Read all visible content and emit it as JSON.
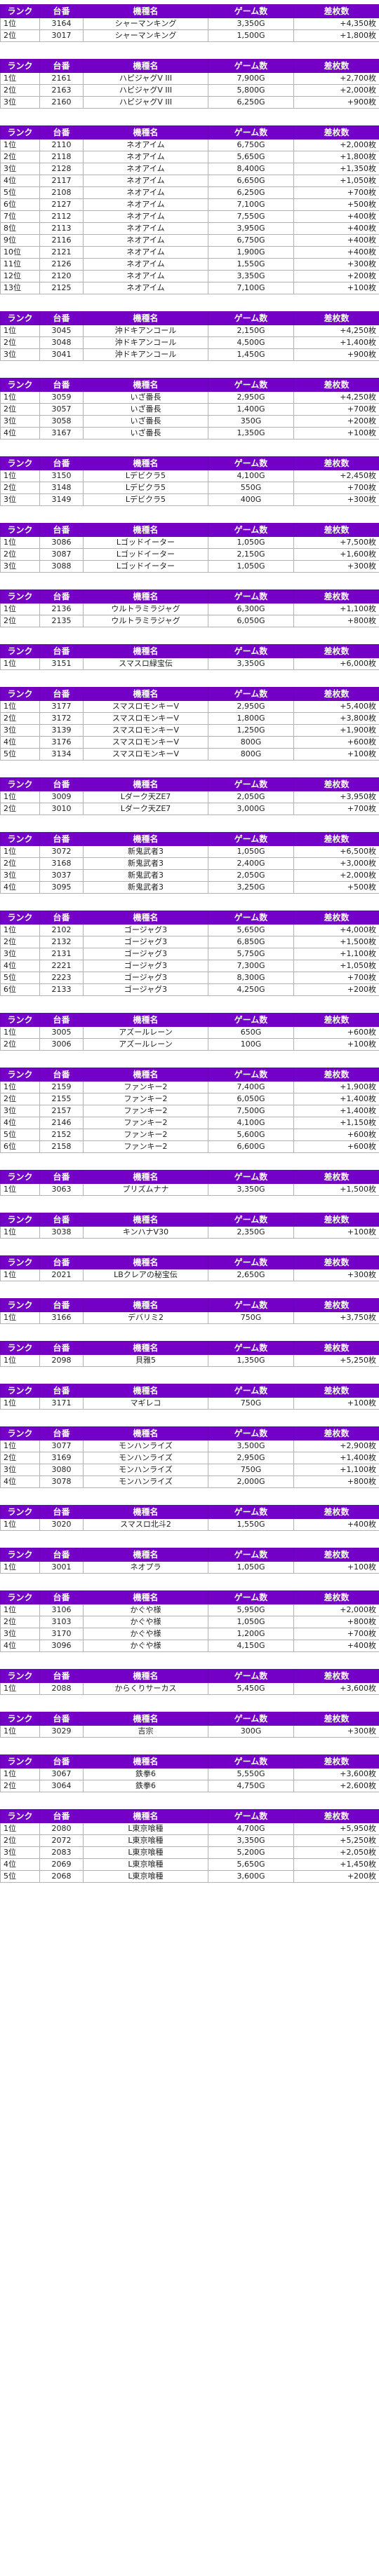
{
  "headers": [
    "ランク",
    "台番",
    "機種名",
    "ゲーム数",
    "差枚数"
  ],
  "groups": [
    {
      "rows": [
        [
          "1位",
          "3164",
          "シャーマンキング",
          "3,350G",
          "+4,350枚"
        ],
        [
          "2位",
          "3017",
          "シャーマンキング",
          "1,500G",
          "+1,800枚"
        ]
      ]
    },
    {
      "rows": [
        [
          "1位",
          "2161",
          "ハピジャグV III",
          "7,900G",
          "+2,700枚"
        ],
        [
          "2位",
          "2163",
          "ハピジャグV III",
          "5,800G",
          "+2,000枚"
        ],
        [
          "3位",
          "2160",
          "ハピジャグV III",
          "6,250G",
          "+900枚"
        ]
      ]
    },
    {
      "rows": [
        [
          "1位",
          "2110",
          "ネオアイム",
          "6,750G",
          "+2,000枚"
        ],
        [
          "2位",
          "2118",
          "ネオアイム",
          "5,650G",
          "+1,800枚"
        ],
        [
          "3位",
          "2128",
          "ネオアイム",
          "8,400G",
          "+1,350枚"
        ],
        [
          "4位",
          "2117",
          "ネオアイム",
          "6,650G",
          "+1,050枚"
        ],
        [
          "5位",
          "2108",
          "ネオアイム",
          "6,250G",
          "+700枚"
        ],
        [
          "6位",
          "2127",
          "ネオアイム",
          "7,100G",
          "+500枚"
        ],
        [
          "7位",
          "2112",
          "ネオアイム",
          "7,550G",
          "+400枚"
        ],
        [
          "8位",
          "2113",
          "ネオアイム",
          "3,950G",
          "+400枚"
        ],
        [
          "9位",
          "2116",
          "ネオアイム",
          "6,750G",
          "+400枚"
        ],
        [
          "10位",
          "2121",
          "ネオアイム",
          "1,900G",
          "+400枚"
        ],
        [
          "11位",
          "2126",
          "ネオアイム",
          "1,550G",
          "+300枚"
        ],
        [
          "12位",
          "2120",
          "ネオアイム",
          "3,350G",
          "+200枚"
        ],
        [
          "13位",
          "2125",
          "ネオアイム",
          "7,100G",
          "+100枚"
        ]
      ]
    },
    {
      "rows": [
        [
          "1位",
          "3045",
          "沖ドキアンコール",
          "2,150G",
          "+4,250枚"
        ],
        [
          "2位",
          "3048",
          "沖ドキアンコール",
          "4,500G",
          "+1,400枚"
        ],
        [
          "3位",
          "3041",
          "沖ドキアンコール",
          "1,450G",
          "+900枚"
        ]
      ]
    },
    {
      "rows": [
        [
          "1位",
          "3059",
          "いざ番長",
          "2,950G",
          "+4,250枚"
        ],
        [
          "2位",
          "3057",
          "いざ番長",
          "1,400G",
          "+700枚"
        ],
        [
          "3位",
          "3058",
          "いざ番長",
          "350G",
          "+200枚"
        ],
        [
          "4位",
          "3167",
          "いざ番長",
          "1,350G",
          "+100枚"
        ]
      ]
    },
    {
      "rows": [
        [
          "1位",
          "3150",
          "Lデビクラ5",
          "4,100G",
          "+2,450枚"
        ],
        [
          "2位",
          "3148",
          "Lデビクラ5",
          "550G",
          "+700枚"
        ],
        [
          "3位",
          "3149",
          "Lデビクラ5",
          "400G",
          "+300枚"
        ]
      ]
    },
    {
      "rows": [
        [
          "1位",
          "3086",
          "Lゴッドイーター",
          "1,050G",
          "+7,500枚"
        ],
        [
          "2位",
          "3087",
          "Lゴッドイーター",
          "2,150G",
          "+1,600枚"
        ],
        [
          "3位",
          "3088",
          "Lゴッドイーター",
          "1,050G",
          "+300枚"
        ]
      ]
    },
    {
      "rows": [
        [
          "1位",
          "2136",
          "ウルトラミラジャグ",
          "6,300G",
          "+1,100枚"
        ],
        [
          "2位",
          "2135",
          "ウルトラミラジャグ",
          "6,050G",
          "+800枚"
        ]
      ]
    },
    {
      "rows": [
        [
          "1位",
          "3151",
          "スマスロ緑宝伝",
          "3,350G",
          "+6,000枚"
        ]
      ]
    },
    {
      "rows": [
        [
          "1位",
          "3177",
          "スマスロモンキーV",
          "2,950G",
          "+5,400枚"
        ],
        [
          "2位",
          "3172",
          "スマスロモンキーV",
          "1,800G",
          "+3,800枚"
        ],
        [
          "3位",
          "3139",
          "スマスロモンキーV",
          "1,250G",
          "+1,900枚"
        ],
        [
          "4位",
          "3176",
          "スマスロモンキーV",
          "800G",
          "+600枚"
        ],
        [
          "5位",
          "3134",
          "スマスロモンキーV",
          "800G",
          "+100枚"
        ]
      ]
    },
    {
      "rows": [
        [
          "1位",
          "3009",
          "Lダーク天ZE7",
          "2,050G",
          "+3,950枚"
        ],
        [
          "2位",
          "3010",
          "Lダーク天ZE7",
          "3,000G",
          "+700枚"
        ]
      ]
    },
    {
      "rows": [
        [
          "1位",
          "3072",
          "新鬼武者3",
          "1,050G",
          "+6,500枚"
        ],
        [
          "2位",
          "3168",
          "新鬼武者3",
          "2,400G",
          "+3,000枚"
        ],
        [
          "3位",
          "3037",
          "新鬼武者3",
          "2,050G",
          "+2,000枚"
        ],
        [
          "4位",
          "3095",
          "新鬼武者3",
          "3,250G",
          "+500枚"
        ]
      ]
    },
    {
      "rows": [
        [
          "1位",
          "2102",
          "ゴージャグ3",
          "5,650G",
          "+4,000枚"
        ],
        [
          "2位",
          "2132",
          "ゴージャグ3",
          "6,850G",
          "+1,500枚"
        ],
        [
          "3位",
          "2131",
          "ゴージャグ3",
          "5,750G",
          "+1,100枚"
        ],
        [
          "4位",
          "2221",
          "ゴージャグ3",
          "7,300G",
          "+1,050枚"
        ],
        [
          "5位",
          "2223",
          "ゴージャグ3",
          "8,300G",
          "+700枚"
        ],
        [
          "6位",
          "2133",
          "ゴージャグ3",
          "4,250G",
          "+200枚"
        ]
      ]
    },
    {
      "rows": [
        [
          "1位",
          "3005",
          "アズールレーン",
          "650G",
          "+600枚"
        ],
        [
          "2位",
          "3006",
          "アズールレーン",
          "100G",
          "+100枚"
        ]
      ]
    },
    {
      "rows": [
        [
          "1位",
          "2159",
          "ファンキー2",
          "7,400G",
          "+1,900枚"
        ],
        [
          "2位",
          "2155",
          "ファンキー2",
          "6,050G",
          "+1,400枚"
        ],
        [
          "3位",
          "2157",
          "ファンキー2",
          "7,500G",
          "+1,400枚"
        ],
        [
          "4位",
          "2146",
          "ファンキー2",
          "4,100G",
          "+1,150枚"
        ],
        [
          "5位",
          "2152",
          "ファンキー2",
          "5,600G",
          "+600枚"
        ],
        [
          "6位",
          "2158",
          "ファンキー2",
          "6,600G",
          "+600枚"
        ]
      ]
    },
    {
      "rows": [
        [
          "1位",
          "3063",
          "プリズムナナ",
          "3,350G",
          "+1,500枚"
        ]
      ]
    },
    {
      "rows": [
        [
          "1位",
          "3038",
          "キンハナV30",
          "2,350G",
          "+100枚"
        ]
      ]
    },
    {
      "rows": [
        [
          "1位",
          "2021",
          "LBクレアの秘宝伝",
          "2,650G",
          "+300枚"
        ]
      ]
    },
    {
      "rows": [
        [
          "1位",
          "3166",
          "デバリミ2",
          "750G",
          "+3,750枚"
        ]
      ]
    },
    {
      "rows": [
        [
          "1位",
          "2098",
          "貝雅5",
          "1,350G",
          "+5,250枚"
        ]
      ]
    },
    {
      "rows": [
        [
          "1位",
          "3171",
          "マギレコ",
          "750G",
          "+100枚"
        ]
      ]
    },
    {
      "rows": [
        [
          "1位",
          "3077",
          "モンハンライズ",
          "3,500G",
          "+2,900枚"
        ],
        [
          "2位",
          "3169",
          "モンハンライズ",
          "2,950G",
          "+1,400枚"
        ],
        [
          "3位",
          "3080",
          "モンハンライズ",
          "750G",
          "+1,100枚"
        ],
        [
          "4位",
          "3078",
          "モンハンライズ",
          "2,000G",
          "+800枚"
        ]
      ]
    },
    {
      "rows": [
        [
          "1位",
          "3020",
          "スマスロ北斗2",
          "1,550G",
          "+400枚"
        ]
      ]
    },
    {
      "rows": [
        [
          "1位",
          "3001",
          "ネオプラ",
          "1,050G",
          "+100枚"
        ]
      ]
    },
    {
      "rows": [
        [
          "1位",
          "3106",
          "かぐや様",
          "5,950G",
          "+2,000枚"
        ],
        [
          "2位",
          "3103",
          "かぐや様",
          "1,050G",
          "+800枚"
        ],
        [
          "3位",
          "3170",
          "かぐや様",
          "1,200G",
          "+700枚"
        ],
        [
          "4位",
          "3096",
          "かぐや様",
          "4,150G",
          "+400枚"
        ]
      ]
    },
    {
      "rows": [
        [
          "1位",
          "2088",
          "からくりサーカス",
          "5,450G",
          "+3,600枚"
        ]
      ]
    },
    {
      "rows": [
        [
          "1位",
          "3029",
          "吉宗",
          "300G",
          "+300枚"
        ]
      ]
    },
    {
      "rows": [
        [
          "1位",
          "3067",
          "鉄拳6",
          "5,550G",
          "+3,600枚"
        ],
        [
          "2位",
          "3064",
          "鉄拳6",
          "4,750G",
          "+2,600枚"
        ]
      ]
    },
    {
      "rows": [
        [
          "1位",
          "2080",
          "L東京喰種",
          "4,700G",
          "+5,950枚"
        ],
        [
          "2位",
          "2072",
          "L東京喰種",
          "3,350G",
          "+5,250枚"
        ],
        [
          "3位",
          "2083",
          "L東京喰種",
          "5,200G",
          "+2,050枚"
        ],
        [
          "4位",
          "2069",
          "L東京喰種",
          "5,650G",
          "+1,450枚"
        ],
        [
          "5位",
          "2068",
          "L東京喰種",
          "3,600G",
          "+200枚"
        ]
      ]
    }
  ]
}
